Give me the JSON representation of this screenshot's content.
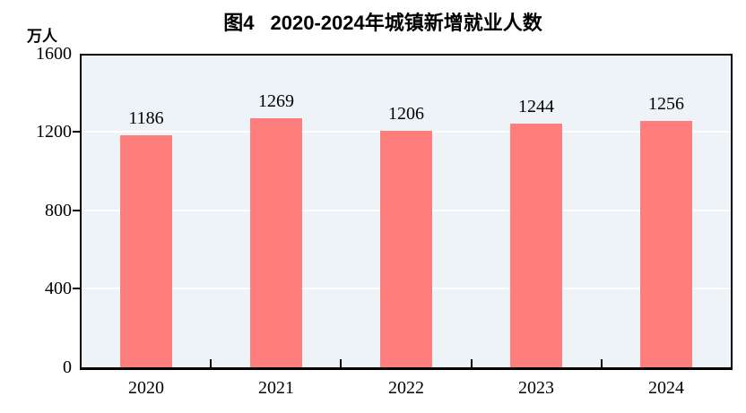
{
  "title": {
    "prefix": "图4",
    "text": "2020-2024年城镇新增就业人数"
  },
  "y_axis": {
    "unit": "万人"
  },
  "chart_data": {
    "type": "bar",
    "title": "图4 2020-2024年城镇新增就业人数",
    "categories": [
      "2020",
      "2021",
      "2022",
      "2023",
      "2024"
    ],
    "values": [
      1186,
      1269,
      1206,
      1244,
      1256
    ],
    "xlabel": "",
    "ylabel": "万人",
    "ylim": [
      0,
      1600
    ],
    "yticks": [
      0,
      400,
      800,
      1200,
      1600
    ],
    "grid": "horizontal white gridlines at y ticks",
    "legend_position": "none",
    "data_labels": true,
    "colors": {
      "bar": "#FD7E7C",
      "plot_background": "#EDF3F7",
      "gridline": "#FFFFFF",
      "axis": "#000000",
      "text": "#000000"
    }
  }
}
